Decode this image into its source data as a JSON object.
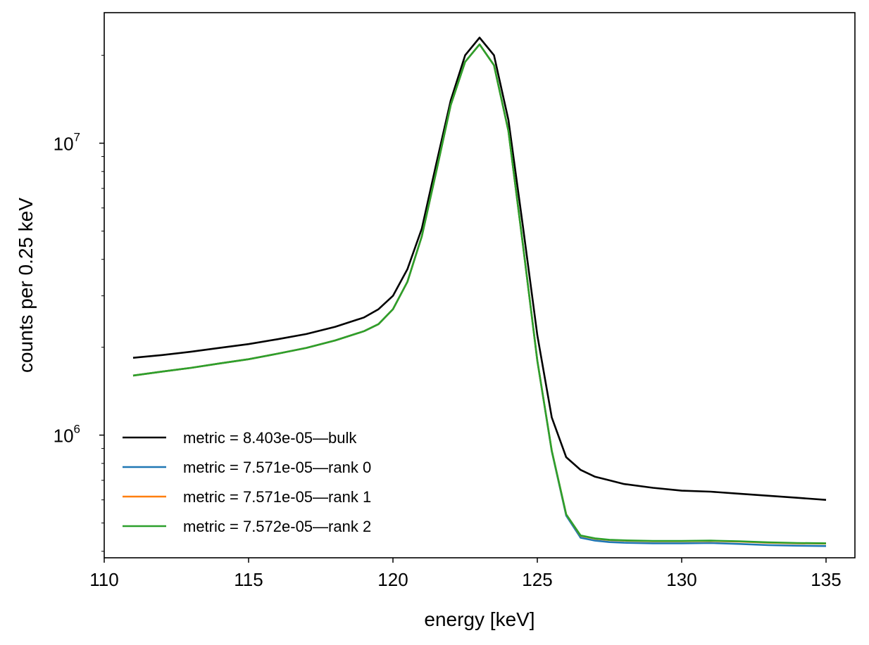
{
  "chart_data": {
    "type": "line",
    "xlabel": "energy [keV]",
    "ylabel": "counts per 0.25 keV",
    "xlim": [
      110,
      136
    ],
    "ylim": [
      380000,
      28000000
    ],
    "yscale": "log",
    "x_ticks": [
      110,
      115,
      120,
      125,
      130,
      135
    ],
    "y_ticks": [
      {
        "value": 1000000,
        "base": "10",
        "exp": "6"
      },
      {
        "value": 10000000,
        "base": "10",
        "exp": "7"
      }
    ],
    "legend_position": "lower-left",
    "series": [
      {
        "name": "metric = 8.403e-05—bulk",
        "color": "#000000",
        "x": [
          111,
          112,
          113,
          114,
          115,
          116,
          117,
          118,
          119,
          119.5,
          120,
          120.5,
          121,
          121.5,
          122,
          122.5,
          123,
          123.5,
          124,
          124.5,
          125,
          125.5,
          126,
          126.5,
          127,
          127.5,
          128,
          129,
          130,
          131,
          132,
          133,
          134,
          135
        ],
        "y": [
          1840000,
          1880000,
          1930000,
          1990000,
          2050000,
          2130000,
          2220000,
          2350000,
          2530000,
          2700000,
          3000000,
          3700000,
          5100000,
          8500000,
          14000000,
          20000000,
          23000000,
          20000000,
          12000000,
          5200000,
          2200000,
          1150000,
          840000,
          760000,
          720000,
          700000,
          680000,
          660000,
          645000,
          640000,
          630000,
          620000,
          610000,
          600000
        ]
      },
      {
        "name": "metric = 7.571e-05—rank 0",
        "color": "#1f77b4",
        "x": [
          111,
          112,
          113,
          114,
          115,
          116,
          117,
          118,
          119,
          119.5,
          120,
          120.5,
          121,
          121.5,
          122,
          122.5,
          123,
          123.5,
          124,
          124.5,
          125,
          125.5,
          126,
          126.5,
          127,
          127.5,
          128,
          129,
          130,
          131,
          132,
          133,
          134,
          135
        ],
        "y": [
          1600000,
          1650000,
          1700000,
          1760000,
          1820000,
          1900000,
          1990000,
          2110000,
          2270000,
          2400000,
          2700000,
          3350000,
          4800000,
          8000000,
          13500000,
          19000000,
          21800000,
          18500000,
          11000000,
          4500000,
          1800000,
          880000,
          530000,
          445000,
          435000,
          430000,
          428000,
          426000,
          426000,
          427000,
          424000,
          420000,
          418000,
          417000
        ]
      },
      {
        "name": "metric = 7.571e-05—rank 1",
        "color": "#ff7f0e",
        "x": [
          111,
          112,
          113,
          114,
          115,
          116,
          117,
          118,
          119,
          119.5,
          120,
          120.5,
          121,
          121.5,
          122,
          122.5,
          123,
          123.5,
          124,
          124.5,
          125,
          125.5,
          126,
          126.5,
          127,
          127.5,
          128,
          129,
          130,
          131,
          132,
          133,
          134,
          135
        ],
        "y": [
          1600000,
          1650000,
          1700000,
          1760000,
          1820000,
          1900000,
          1990000,
          2110000,
          2270000,
          2400000,
          2700000,
          3350000,
          4800000,
          8000000,
          13500000,
          19000000,
          21800000,
          18500000,
          11000000,
          4500000,
          1800000,
          885000,
          535000,
          452000,
          442000,
          437000,
          435000,
          433000,
          433000,
          434000,
          432000,
          428000,
          426000,
          425000
        ]
      },
      {
        "name": "metric = 7.572e-05—rank 2",
        "color": "#2ca02c",
        "x": [
          111,
          112,
          113,
          114,
          115,
          116,
          117,
          118,
          119,
          119.5,
          120,
          120.5,
          121,
          121.5,
          122,
          122.5,
          123,
          123.5,
          124,
          124.5,
          125,
          125.5,
          126,
          126.5,
          127,
          127.5,
          128,
          129,
          130,
          131,
          132,
          133,
          134,
          135
        ],
        "y": [
          1600000,
          1650000,
          1700000,
          1760000,
          1820000,
          1900000,
          1990000,
          2110000,
          2270000,
          2400000,
          2700000,
          3350000,
          4800000,
          8000000,
          13500000,
          19000000,
          21800000,
          18500000,
          11000000,
          4500000,
          1800000,
          885000,
          535000,
          453000,
          443000,
          438000,
          436000,
          434000,
          434000,
          435000,
          433000,
          429000,
          427000,
          426000
        ]
      }
    ]
  }
}
